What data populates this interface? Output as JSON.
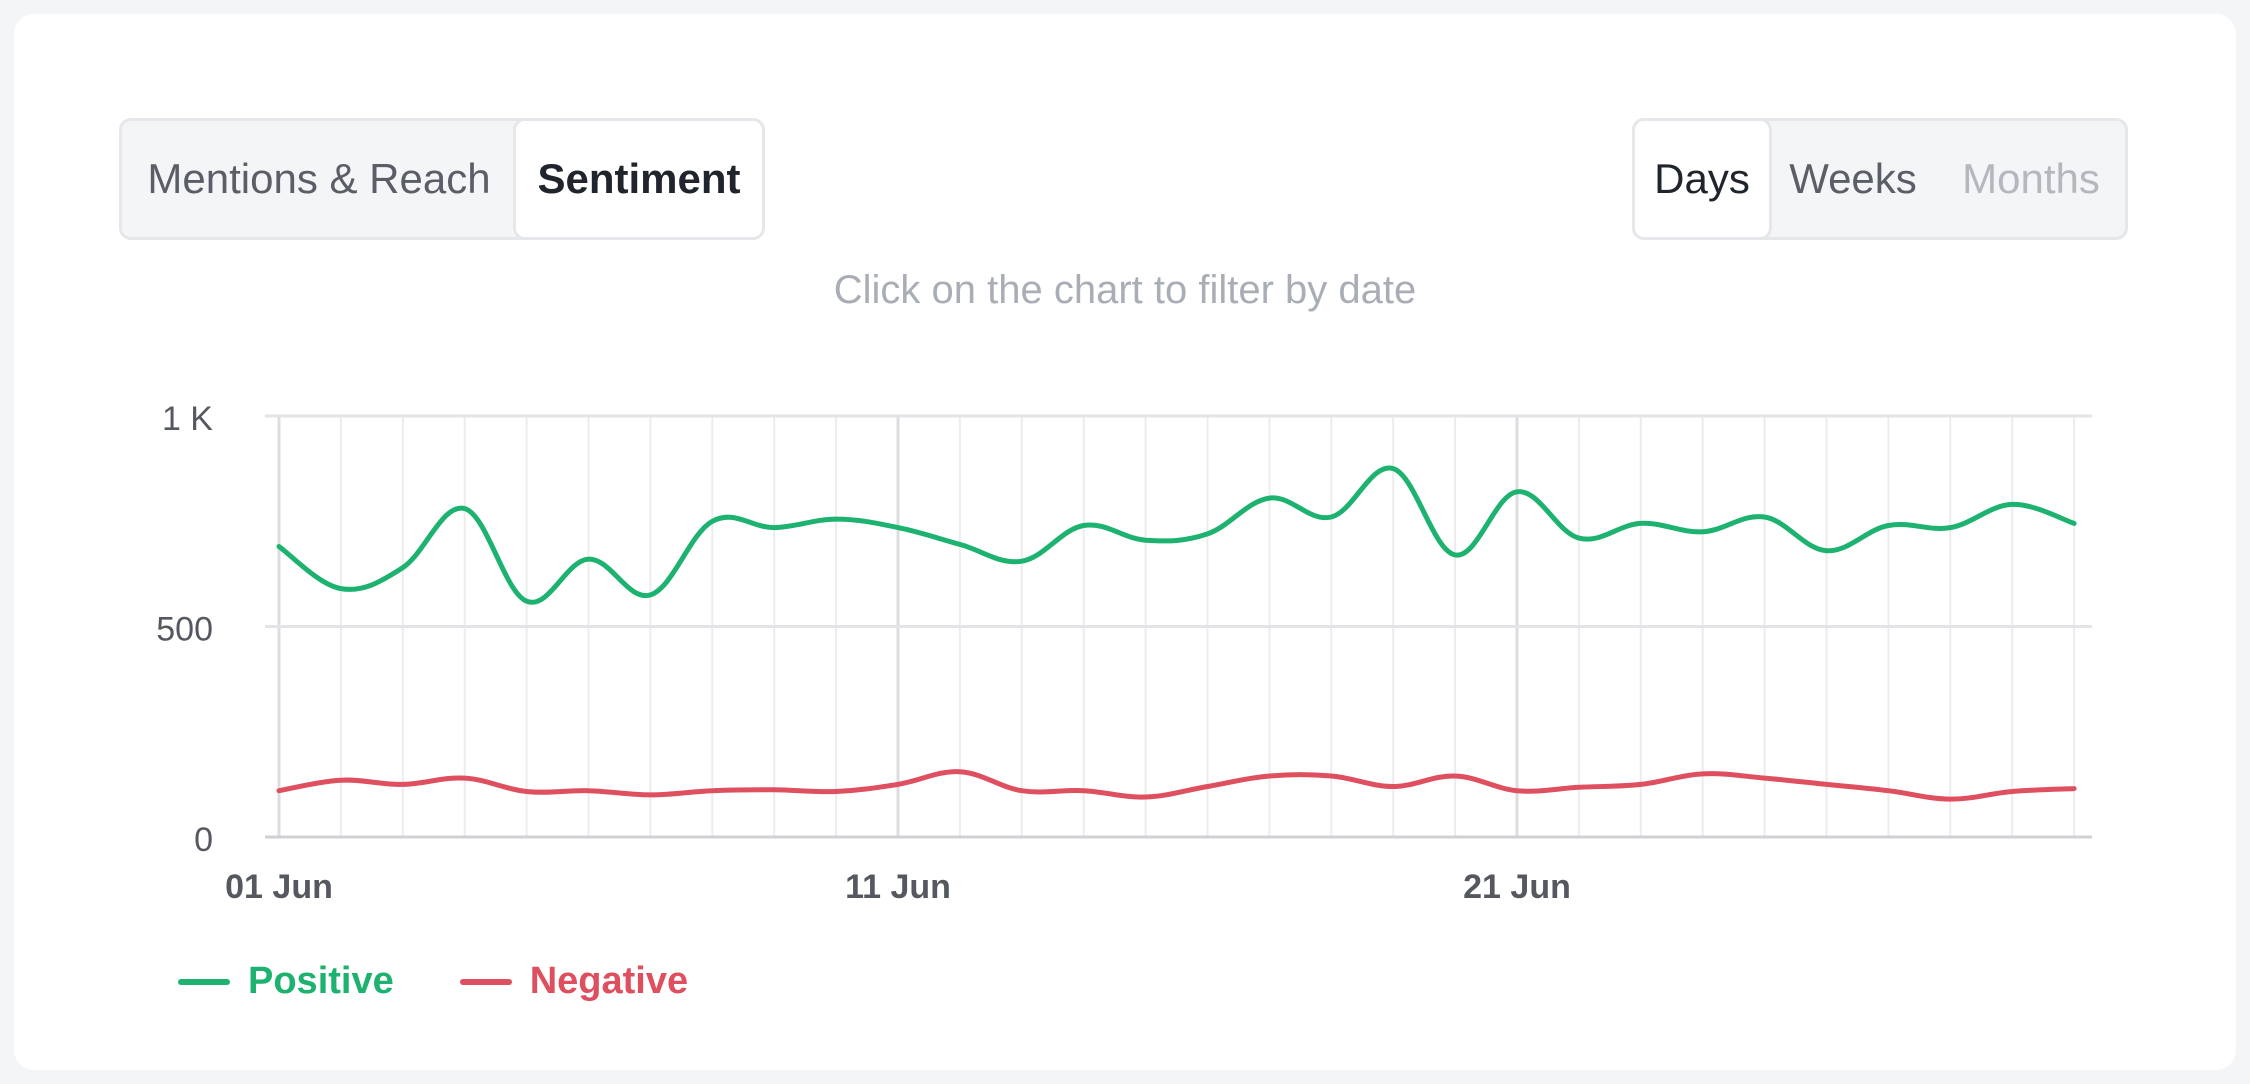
{
  "tabs": [
    {
      "label": "Mentions & Reach",
      "active": false
    },
    {
      "label": "Sentiment",
      "active": true
    }
  ],
  "periods": [
    {
      "label": "Days",
      "state": "active"
    },
    {
      "label": "Weeks",
      "state": "normal"
    },
    {
      "label": "Months",
      "state": "disabled"
    }
  ],
  "hint": "Click on the chart to filter by date",
  "colors": {
    "positive": "#1db270",
    "negative": "#de4f5f"
  },
  "chart_data": {
    "type": "line",
    "x": [
      "01 Jun",
      "02 Jun",
      "03 Jun",
      "04 Jun",
      "05 Jun",
      "06 Jun",
      "07 Jun",
      "08 Jun",
      "09 Jun",
      "10 Jun",
      "11 Jun",
      "12 Jun",
      "13 Jun",
      "14 Jun",
      "15 Jun",
      "16 Jun",
      "17 Jun",
      "18 Jun",
      "19 Jun",
      "20 Jun",
      "21 Jun",
      "22 Jun",
      "23 Jun",
      "24 Jun",
      "25 Jun",
      "26 Jun",
      "27 Jun",
      "28 Jun",
      "29 Jun",
      "30 Jun"
    ],
    "x_tick_labels": [
      "01 Jun",
      "11 Jun",
      "21 Jun"
    ],
    "y_tick_labels": [
      "0",
      "500",
      "1 K"
    ],
    "ylim": [
      0,
      1000
    ],
    "yticks": [
      0,
      500,
      1000
    ],
    "grid": true,
    "legend_position": "bottom-left",
    "series": [
      {
        "name": "Positive",
        "color": "#1db270",
        "values": [
          690,
          590,
          640,
          780,
          560,
          660,
          575,
          750,
          735,
          755,
          735,
          695,
          655,
          740,
          705,
          720,
          805,
          760,
          875,
          670,
          820,
          710,
          745,
          725,
          760,
          680,
          740,
          735,
          790,
          745
        ]
      },
      {
        "name": "Negative",
        "color": "#de4f5f",
        "values": [
          110,
          135,
          125,
          140,
          108,
          110,
          100,
          110,
          112,
          108,
          125,
          155,
          110,
          110,
          95,
          120,
          145,
          145,
          120,
          145,
          110,
          118,
          125,
          150,
          140,
          125,
          110,
          90,
          108,
          115
        ]
      }
    ]
  }
}
